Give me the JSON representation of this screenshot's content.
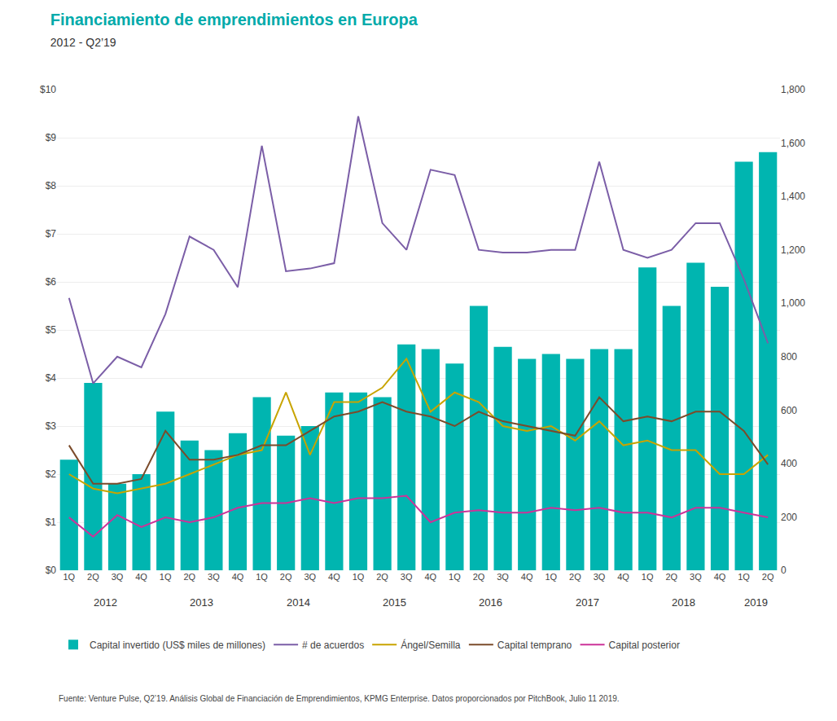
{
  "chart_data": {
    "type": "bar",
    "title": "Financiamiento de emprendimientos en Europa",
    "subtitle": "2012 - Q2’19",
    "annotations": [
      "2012",
      "2013",
      "2014",
      "2015",
      "2016",
      "2017",
      "2018",
      "2019"
    ],
    "source": "Fuente: Venture Pulse, Q2’19. Análisis Global de Financiación de Emprendimientos, KPMG Enterprise. Datos proporcionados por PitchBook, Julio 11 2019.",
    "title_color": "#00AAAA",
    "categories": [
      "1Q",
      "2Q",
      "3Q",
      "4Q",
      "1Q",
      "2Q",
      "3Q",
      "4Q",
      "1Q",
      "2Q",
      "3Q",
      "4Q",
      "1Q",
      "2Q",
      "3Q",
      "4Q",
      "1Q",
      "2Q",
      "3Q",
      "4Q",
      "1Q",
      "2Q",
      "3Q",
      "4Q",
      "1Q",
      "2Q",
      "3Q",
      "4Q",
      "1Q",
      "2Q"
    ],
    "series": [
      {
        "name": "Capital invertido (US$ miles de millones)",
        "type": "bar",
        "color": "#00B5B0",
        "values": [
          2.3,
          3.9,
          1.8,
          2.0,
          3.3,
          2.7,
          2.5,
          2.85,
          3.6,
          2.8,
          3.0,
          3.7,
          3.7,
          3.6,
          4.7,
          4.6,
          4.3,
          5.5,
          4.65,
          4.4,
          4.5,
          4.4,
          4.6,
          4.6,
          6.3,
          5.5,
          6.4,
          5.9,
          8.5,
          8.7
        ]
      },
      {
        "name": "# de acuerdos",
        "type": "line",
        "color": "#7B5EA7",
        "axis": "y2",
        "values": [
          1020,
          700,
          800,
          760,
          960,
          1250,
          1200,
          1060,
          1590,
          1120,
          1130,
          1150,
          1700,
          1300,
          1200,
          1500,
          1480,
          1200,
          1190,
          1190,
          1200,
          1200,
          1530,
          1200,
          1170,
          1200,
          1300,
          1300,
          1090,
          850
        ]
      },
      {
        "name": "Ángel/Semilla",
        "type": "line",
        "color": "#C8A400",
        "values": [
          2.0,
          1.7,
          1.6,
          1.7,
          1.8,
          2.0,
          2.2,
          2.4,
          2.5,
          3.7,
          2.4,
          3.5,
          3.5,
          3.8,
          4.4,
          3.3,
          3.7,
          3.5,
          3.0,
          2.9,
          3.0,
          2.7,
          3.1,
          2.6,
          2.7,
          2.5,
          2.5,
          2.0,
          2.0,
          2.4
        ]
      },
      {
        "name": "Capital temprano",
        "type": "line",
        "color": "#7B4B2A",
        "values": [
          2.6,
          1.8,
          1.8,
          1.9,
          2.9,
          2.3,
          2.3,
          2.4,
          2.6,
          2.6,
          2.9,
          3.2,
          3.3,
          3.5,
          3.3,
          3.2,
          3.0,
          3.3,
          3.1,
          3.0,
          2.9,
          2.8,
          3.6,
          3.1,
          3.2,
          3.1,
          3.3,
          3.3,
          2.9,
          2.2
        ]
      },
      {
        "name": "Capital posterior",
        "type": "line",
        "color": "#CC3399",
        "values": [
          1.1,
          0.7,
          1.15,
          0.9,
          1.1,
          1.0,
          1.1,
          1.3,
          1.4,
          1.4,
          1.5,
          1.4,
          1.5,
          1.5,
          1.55,
          1.0,
          1.2,
          1.25,
          1.2,
          1.2,
          1.3,
          1.25,
          1.3,
          1.2,
          1.2,
          1.1,
          1.3,
          1.3,
          1.2,
          1.1
        ]
      }
    ],
    "ylim": [
      0,
      10
    ],
    "yticks": [
      {
        "value": 0,
        "label": "$0"
      },
      {
        "value": 1,
        "label": "$1"
      },
      {
        "value": 2,
        "label": "$2"
      },
      {
        "value": 3,
        "label": "$3"
      },
      {
        "value": 4,
        "label": "$4"
      },
      {
        "value": 5,
        "label": "$5"
      },
      {
        "value": 6,
        "label": "$6"
      },
      {
        "value": 7,
        "label": "$7"
      },
      {
        "value": 8,
        "label": "$8"
      },
      {
        "value": 9,
        "label": "$9"
      },
      {
        "value": 10,
        "label": "$10"
      }
    ],
    "y2lim": [
      0,
      1800
    ],
    "y2ticks": [
      0,
      200,
      400,
      600,
      800,
      {
        "value": 1000,
        "label": "1,000"
      },
      {
        "value": 1200,
        "label": "1,200"
      },
      {
        "value": 1400,
        "label": "1,400"
      },
      {
        "value": 1600,
        "label": "1,600"
      },
      {
        "value": 1800,
        "label": "1,800"
      }
    ],
    "grid": true,
    "legend": "bottom"
  }
}
